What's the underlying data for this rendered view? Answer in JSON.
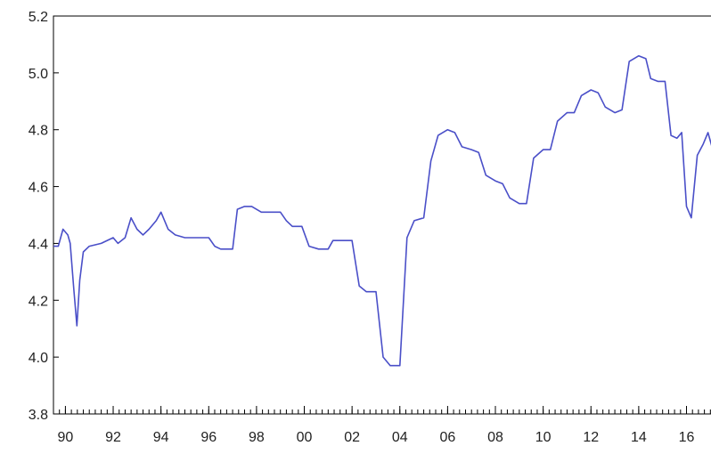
{
  "chart_data": {
    "type": "line",
    "title": "",
    "xlabel": "",
    "ylabel": "",
    "xlim": [
      1989.5,
      2017.1
    ],
    "ylim": [
      3.8,
      5.2
    ],
    "grid": false,
    "y_ticks": [
      "3.8",
      "4.0",
      "4.2",
      "4.4",
      "4.6",
      "4.8",
      "5.0",
      "5.2"
    ],
    "x_tick_labels": [
      {
        "x": 1990,
        "label": "90"
      },
      {
        "x": 1992,
        "label": "92"
      },
      {
        "x": 1994,
        "label": "94"
      },
      {
        "x": 1996,
        "label": "96"
      },
      {
        "x": 1998,
        "label": "98"
      },
      {
        "x": 2000,
        "label": "00"
      },
      {
        "x": 2002,
        "label": "02"
      },
      {
        "x": 2004,
        "label": "04"
      },
      {
        "x": 2006,
        "label": "06"
      },
      {
        "x": 2008,
        "label": "08"
      },
      {
        "x": 2010,
        "label": "10"
      },
      {
        "x": 2012,
        "label": "12"
      },
      {
        "x": 2014,
        "label": "14"
      },
      {
        "x": 2016,
        "label": "16"
      }
    ],
    "series": [
      {
        "color": "#4a4fc8",
        "points": [
          [
            1989.5,
            4.39
          ],
          [
            1989.7,
            4.39
          ],
          [
            1989.9,
            4.45
          ],
          [
            1990.1,
            4.43
          ],
          [
            1990.2,
            4.4
          ],
          [
            1990.35,
            4.24
          ],
          [
            1990.48,
            4.11
          ],
          [
            1990.6,
            4.27
          ],
          [
            1990.75,
            4.37
          ],
          [
            1991.0,
            4.39
          ],
          [
            1991.5,
            4.4
          ],
          [
            1992.0,
            4.42
          ],
          [
            1992.2,
            4.4
          ],
          [
            1992.5,
            4.42
          ],
          [
            1992.75,
            4.49
          ],
          [
            1993.0,
            4.45
          ],
          [
            1993.25,
            4.43
          ],
          [
            1993.5,
            4.45
          ],
          [
            1993.8,
            4.48
          ],
          [
            1994.0,
            4.51
          ],
          [
            1994.3,
            4.45
          ],
          [
            1994.6,
            4.43
          ],
          [
            1995.0,
            4.42
          ],
          [
            1995.5,
            4.42
          ],
          [
            1996.0,
            4.42
          ],
          [
            1996.25,
            4.39
          ],
          [
            1996.5,
            4.38
          ],
          [
            1997.0,
            4.38
          ],
          [
            1997.2,
            4.52
          ],
          [
            1997.5,
            4.53
          ],
          [
            1997.8,
            4.53
          ],
          [
            1998.2,
            4.51
          ],
          [
            1998.5,
            4.51
          ],
          [
            1999.0,
            4.51
          ],
          [
            1999.25,
            4.48
          ],
          [
            1999.5,
            4.46
          ],
          [
            1999.9,
            4.46
          ],
          [
            2000.2,
            4.39
          ],
          [
            2000.6,
            4.38
          ],
          [
            2001.0,
            4.38
          ],
          [
            2001.2,
            4.41
          ],
          [
            2001.6,
            4.41
          ],
          [
            2002.0,
            4.41
          ],
          [
            2002.3,
            4.25
          ],
          [
            2002.6,
            4.23
          ],
          [
            2003.0,
            4.23
          ],
          [
            2003.3,
            4.0
          ],
          [
            2003.6,
            3.97
          ],
          [
            2004.0,
            3.97
          ],
          [
            2004.3,
            4.42
          ],
          [
            2004.6,
            4.48
          ],
          [
            2005.0,
            4.49
          ],
          [
            2005.3,
            4.69
          ],
          [
            2005.6,
            4.78
          ],
          [
            2006.0,
            4.8
          ],
          [
            2006.3,
            4.79
          ],
          [
            2006.6,
            4.74
          ],
          [
            2007.0,
            4.73
          ],
          [
            2007.3,
            4.72
          ],
          [
            2007.6,
            4.64
          ],
          [
            2008.0,
            4.62
          ],
          [
            2008.3,
            4.61
          ],
          [
            2008.6,
            4.56
          ],
          [
            2009.0,
            4.54
          ],
          [
            2009.3,
            4.54
          ],
          [
            2009.6,
            4.7
          ],
          [
            2010.0,
            4.73
          ],
          [
            2010.3,
            4.73
          ],
          [
            2010.6,
            4.83
          ],
          [
            2011.0,
            4.86
          ],
          [
            2011.3,
            4.86
          ],
          [
            2011.6,
            4.92
          ],
          [
            2012.0,
            4.94
          ],
          [
            2012.3,
            4.93
          ],
          [
            2012.6,
            4.88
          ],
          [
            2013.0,
            4.86
          ],
          [
            2013.3,
            4.87
          ],
          [
            2013.6,
            5.04
          ],
          [
            2014.0,
            5.06
          ],
          [
            2014.3,
            5.05
          ],
          [
            2014.5,
            4.98
          ],
          [
            2014.8,
            4.97
          ],
          [
            2015.1,
            4.97
          ],
          [
            2015.35,
            4.78
          ],
          [
            2015.6,
            4.77
          ],
          [
            2015.8,
            4.79
          ],
          [
            2016.0,
            4.53
          ],
          [
            2016.2,
            4.49
          ],
          [
            2016.45,
            4.71
          ],
          [
            2016.7,
            4.75
          ],
          [
            2016.9,
            4.79
          ],
          [
            2017.1,
            4.73
          ]
        ]
      }
    ]
  }
}
